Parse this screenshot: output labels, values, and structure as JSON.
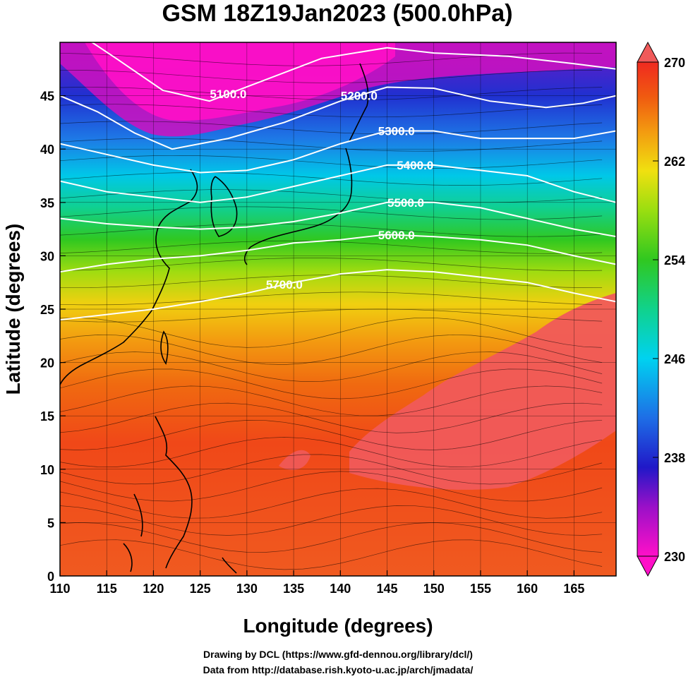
{
  "title": "GSM 18Z19Jan2023 (500.0hPa)",
  "xlabel": "Longitude (degrees)",
  "ylabel": "Latitude  (degrees)",
  "credits": [
    "Drawing by DCL (https://www.gfd-dennou.org/library/dcl/)",
    "Data from http://database.rish.kyoto-u.ac.jp/arch/jmadata/"
  ],
  "colors": {
    "warm_max": "#f05a5a",
    "cold_min": "#ff10c8",
    "contour": "#ffffff",
    "coast": "#000000"
  },
  "chart_data": {
    "type": "heatmap",
    "x_range": [
      110,
      169.5
    ],
    "y_range": [
      0,
      50
    ],
    "x_ticks": [
      "110",
      "115",
      "120",
      "125",
      "130",
      "135",
      "140",
      "145",
      "150",
      "155",
      "160",
      "165"
    ],
    "y_ticks": [
      "0",
      "5",
      "10",
      "15",
      "20",
      "25",
      "30",
      "35",
      "40",
      "45"
    ],
    "field": "temperature (K) shaded, geopotential height contours, wind streamlines",
    "colorbar": {
      "min": 230,
      "max": 270,
      "ticks": [
        "230",
        "238",
        "246",
        "254",
        "262",
        "270"
      ],
      "extend": "both"
    },
    "contours": [
      {
        "label": "5100.0",
        "lat_at": [
          [
            110,
            52
          ],
          [
            116,
            48.5
          ],
          [
            121,
            45.5
          ],
          [
            126,
            44.5
          ],
          [
            132,
            46.5
          ],
          [
            138,
            48.5
          ],
          [
            145,
            49.5
          ],
          [
            150,
            49
          ],
          [
            158,
            48.7
          ],
          [
            165,
            48
          ],
          [
            169.5,
            47.5
          ]
        ]
      },
      {
        "label": "5200.0",
        "lat_at": [
          [
            110,
            45
          ],
          [
            114,
            43.5
          ],
          [
            118,
            41.5
          ],
          [
            122,
            40
          ],
          [
            128,
            41
          ],
          [
            134,
            42.5
          ],
          [
            140,
            44.5
          ],
          [
            145,
            45.8
          ],
          [
            150,
            45.7
          ],
          [
            156,
            44.5
          ],
          [
            162,
            43.9
          ],
          [
            166,
            44.3
          ],
          [
            169.5,
            45
          ]
        ]
      },
      {
        "label": "5300.0",
        "lat_at": [
          [
            110,
            40.5
          ],
          [
            115,
            39.5
          ],
          [
            120,
            38.5
          ],
          [
            125,
            37.8
          ],
          [
            130,
            38
          ],
          [
            135,
            39
          ],
          [
            140,
            40.5
          ],
          [
            145,
            41.7
          ],
          [
            150,
            41.7
          ],
          [
            155,
            41
          ],
          [
            160,
            41
          ],
          [
            165,
            41
          ],
          [
            169.5,
            41.7
          ]
        ]
      },
      {
        "label": "5400.0",
        "lat_at": [
          [
            110,
            37
          ],
          [
            115,
            36
          ],
          [
            120,
            35.5
          ],
          [
            125,
            35
          ],
          [
            130,
            35.5
          ],
          [
            135,
            36.5
          ],
          [
            140,
            37.5
          ],
          [
            145,
            38.5
          ],
          [
            150,
            38.5
          ],
          [
            155,
            38
          ],
          [
            160,
            37.5
          ],
          [
            165,
            36
          ],
          [
            169.5,
            35
          ]
        ]
      },
      {
        "label": "5500.0",
        "lat_at": [
          [
            110,
            33.5
          ],
          [
            115,
            33
          ],
          [
            120,
            32.7
          ],
          [
            125,
            32.5
          ],
          [
            130,
            32.7
          ],
          [
            135,
            33.2
          ],
          [
            140,
            34
          ],
          [
            145,
            35
          ],
          [
            150,
            35
          ],
          [
            155,
            34.5
          ],
          [
            160,
            33.5
          ],
          [
            165,
            32.5
          ],
          [
            169.5,
            31.8
          ]
        ]
      },
      {
        "label": "5600.0",
        "lat_at": [
          [
            110,
            28.5
          ],
          [
            115,
            29.2
          ],
          [
            120,
            29.7
          ],
          [
            125,
            30
          ],
          [
            130,
            30.5
          ],
          [
            135,
            31.2
          ],
          [
            140,
            31.5
          ],
          [
            145,
            32
          ],
          [
            150,
            31.8
          ],
          [
            155,
            31.5
          ],
          [
            160,
            31
          ],
          [
            165,
            30
          ],
          [
            169.5,
            29.2
          ]
        ]
      },
      {
        "label": "5700.0",
        "lat_at": [
          [
            110,
            24
          ],
          [
            115,
            24.5
          ],
          [
            120,
            25
          ],
          [
            125,
            25.7
          ],
          [
            130,
            26.5
          ],
          [
            135,
            27.5
          ],
          [
            140,
            28.3
          ],
          [
            145,
            28.7
          ],
          [
            150,
            28.5
          ],
          [
            155,
            28
          ],
          [
            160,
            27.5
          ],
          [
            165,
            26.5
          ],
          [
            169.5,
            25.7
          ]
        ]
      }
    ]
  }
}
